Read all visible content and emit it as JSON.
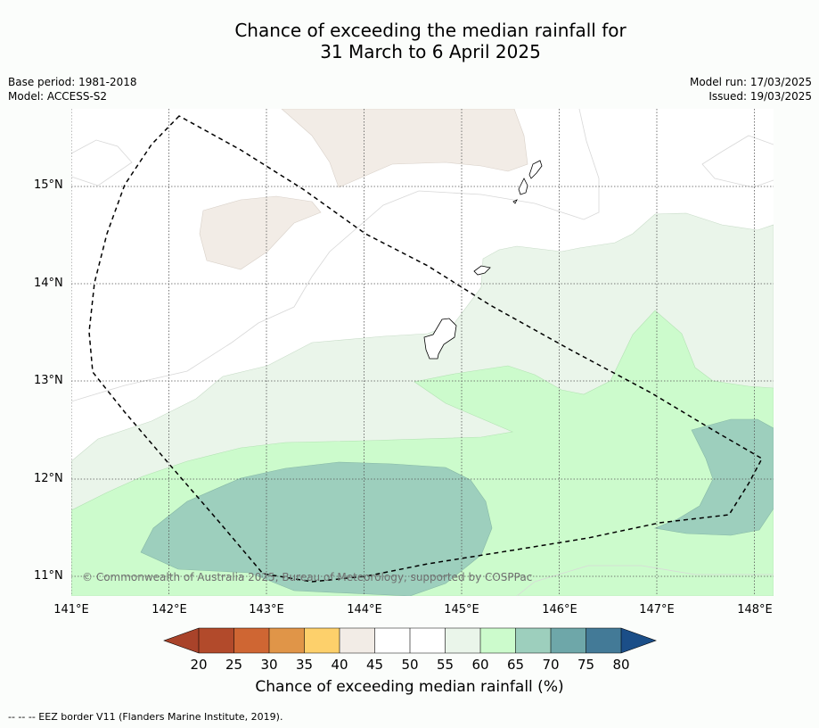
{
  "title_line1": "Chance of exceeding the median rainfall for",
  "title_line2": "31 March to 6 April 2025",
  "base_period": "Base period: 1981-2018",
  "model": "Model: ACCESS-S2",
  "model_run": "Model run: 17/03/2025",
  "issued": "Issued: 19/03/2025",
  "copyright": "© Commonwealth of Australia 2025, Bureau of Meteorology, supported by COSPPac",
  "footer": "--  --  -- EEZ border V11 (Flanders Marine Institute, 2019).",
  "lat_labels": [
    "15°N",
    "14°N",
    "13°N",
    "12°N",
    "11°N"
  ],
  "lon_labels": [
    "141°E",
    "142°E",
    "143°E",
    "144°E",
    "145°E",
    "146°E",
    "147°E",
    "148°E"
  ],
  "colorbar": {
    "title": "Chance of exceeding median rainfall (%)",
    "ticks": [
      "20",
      "25",
      "30",
      "35",
      "40",
      "45",
      "50",
      "55",
      "60",
      "65",
      "70",
      "75",
      "80"
    ],
    "colors": [
      "#a9432a",
      "#b24a2b",
      "#cf6633",
      "#e09548",
      "#fdd06b",
      "#f2ece6",
      "#ffffff",
      "#ffffff",
      "#eaf5ea",
      "#ccfbcc",
      "#9dcfbd",
      "#6ea7a9",
      "#437a97",
      "#1b4e88"
    ]
  }
}
